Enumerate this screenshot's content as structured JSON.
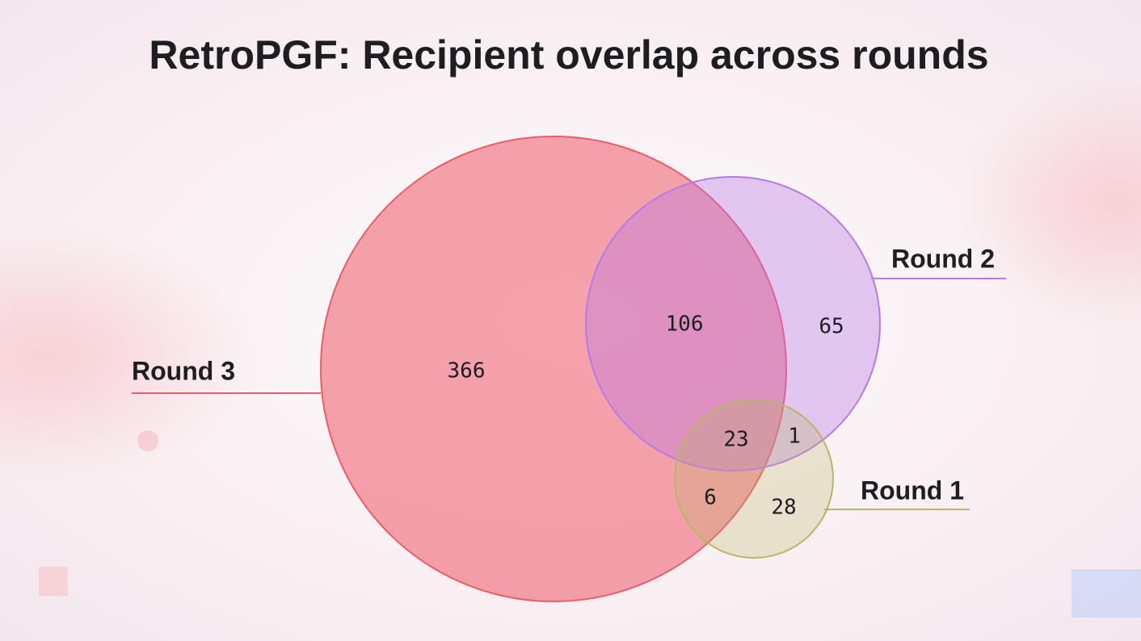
{
  "chart_data": {
    "type": "venn",
    "title": "RetroPGF: Recipient overlap across rounds",
    "sets": [
      {
        "name": "Round 3",
        "color": "#ef5a6a"
      },
      {
        "name": "Round 2",
        "color": "#b77ae6"
      },
      {
        "name": "Round 1",
        "color": "#b9b466"
      }
    ],
    "regions": [
      {
        "sets": [
          "Round 3"
        ],
        "value": 366
      },
      {
        "sets": [
          "Round 3",
          "Round 2"
        ],
        "value": 106
      },
      {
        "sets": [
          "Round 2"
        ],
        "value": 65
      },
      {
        "sets": [
          "Round 3",
          "Round 2",
          "Round 1"
        ],
        "value": 23
      },
      {
        "sets": [
          "Round 2",
          "Round 1"
        ],
        "value": 1
      },
      {
        "sets": [
          "Round 3",
          "Round 1"
        ],
        "value": 6
      },
      {
        "sets": [
          "Round 1"
        ],
        "value": 28
      }
    ]
  }
}
